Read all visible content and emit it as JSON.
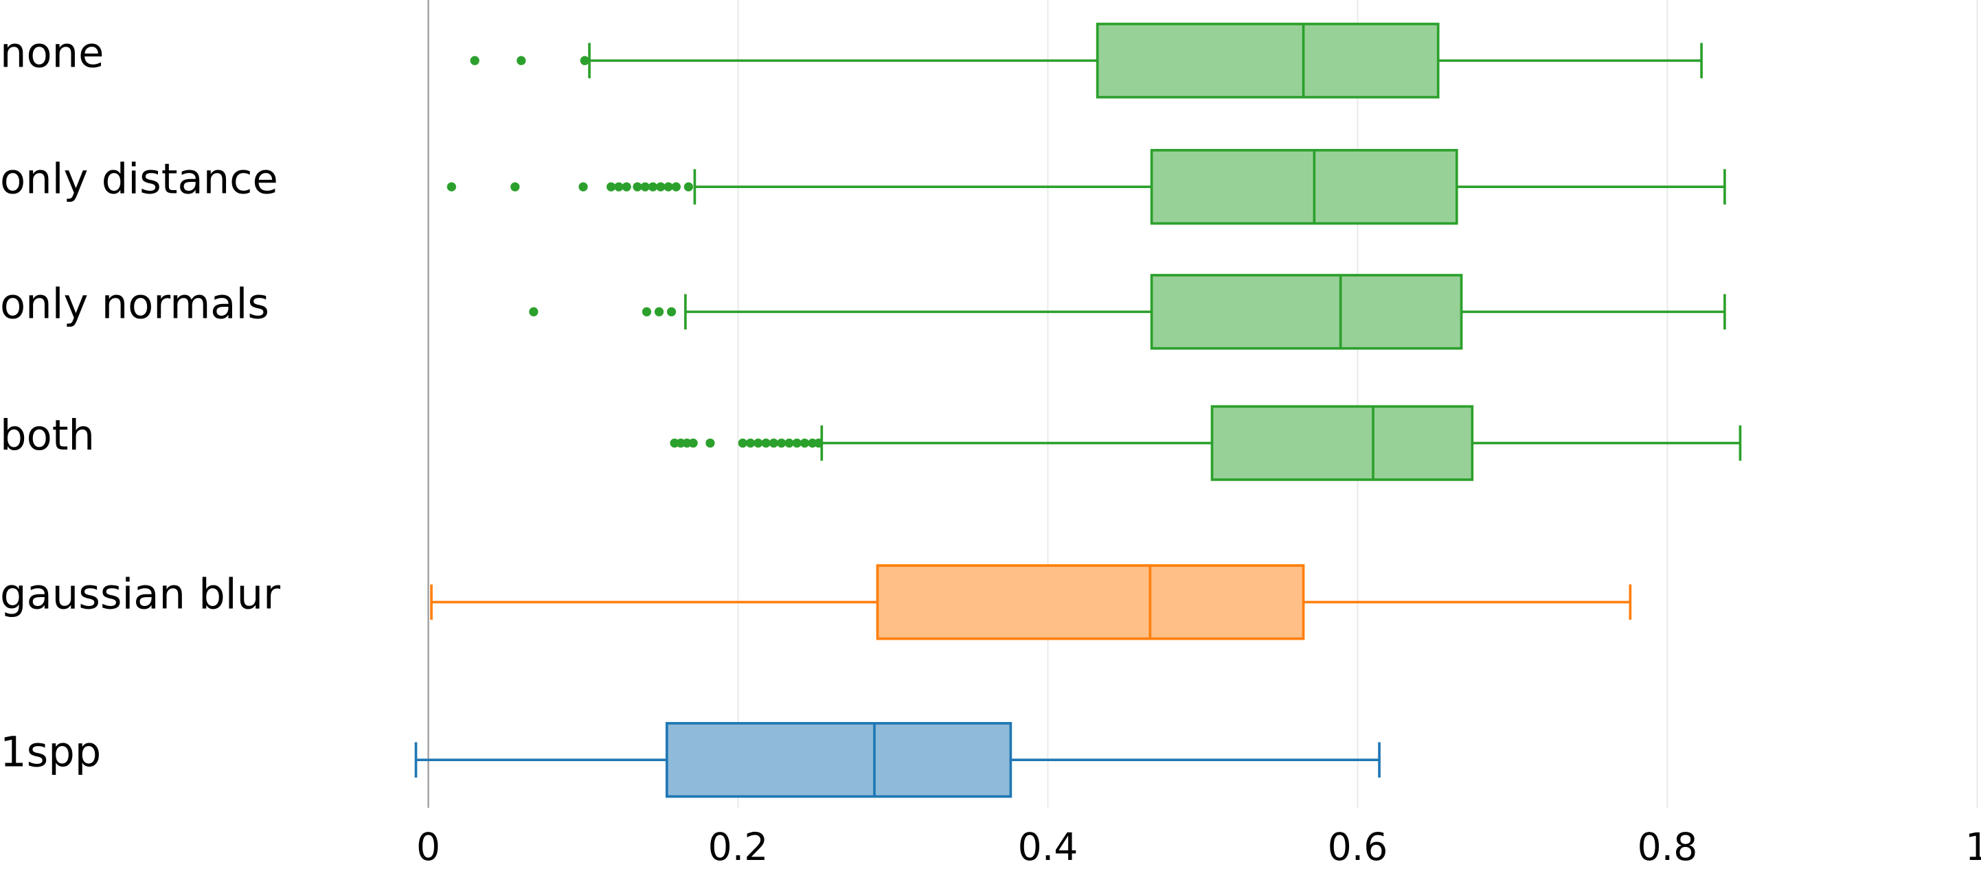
{
  "chart_data": {
    "type": "box",
    "orientation": "horizontal",
    "xlim": [
      -0.02,
      1
    ],
    "xticks": [
      0,
      0.2,
      0.4,
      0.6,
      0.8,
      1
    ],
    "grid": true,
    "boxes": [
      {
        "name": "none",
        "color": "#2ca02c",
        "fill": "#98d198",
        "whislo": 0.104,
        "q1": 0.432,
        "med": 0.565,
        "q3": 0.652,
        "whishi": 0.822,
        "fliers": [
          0.03,
          0.06,
          0.101
        ]
      },
      {
        "name": "only distance",
        "color": "#2ca02c",
        "fill": "#98d198",
        "whislo": 0.172,
        "q1": 0.467,
        "med": 0.572,
        "q3": 0.664,
        "whishi": 0.837,
        "fliers": [
          0.015,
          0.056,
          0.1,
          0.118,
          0.123,
          0.128,
          0.135,
          0.14,
          0.145,
          0.15,
          0.155,
          0.16,
          0.168
        ]
      },
      {
        "name": "only normals",
        "color": "#2ca02c",
        "fill": "#98d198",
        "whislo": 0.166,
        "q1": 0.467,
        "med": 0.589,
        "q3": 0.667,
        "whishi": 0.837,
        "fliers": [
          0.068,
          0.141,
          0.149,
          0.157
        ]
      },
      {
        "name": "both",
        "color": "#2ca02c",
        "fill": "#98d198",
        "whislo": 0.254,
        "q1": 0.506,
        "med": 0.61,
        "q3": 0.674,
        "whishi": 0.847,
        "fliers": [
          0.159,
          0.163,
          0.167,
          0.171,
          0.182,
          0.203,
          0.208,
          0.213,
          0.218,
          0.223,
          0.228,
          0.233,
          0.238,
          0.243,
          0.248,
          0.252
        ]
      },
      {
        "name": "gaussian blur",
        "color": "#ff7f0e",
        "fill": "#ffbf86",
        "whislo": 0.002,
        "q1": 0.29,
        "med": 0.466,
        "q3": 0.565,
        "whishi": 0.776,
        "fliers": []
      },
      {
        "name": "1spp",
        "color": "#1f77b4",
        "fill": "#8fbbd9",
        "whislo": -0.008,
        "q1": 0.154,
        "med": 0.288,
        "q3": 0.376,
        "whishi": 0.614,
        "fliers": []
      }
    ]
  }
}
